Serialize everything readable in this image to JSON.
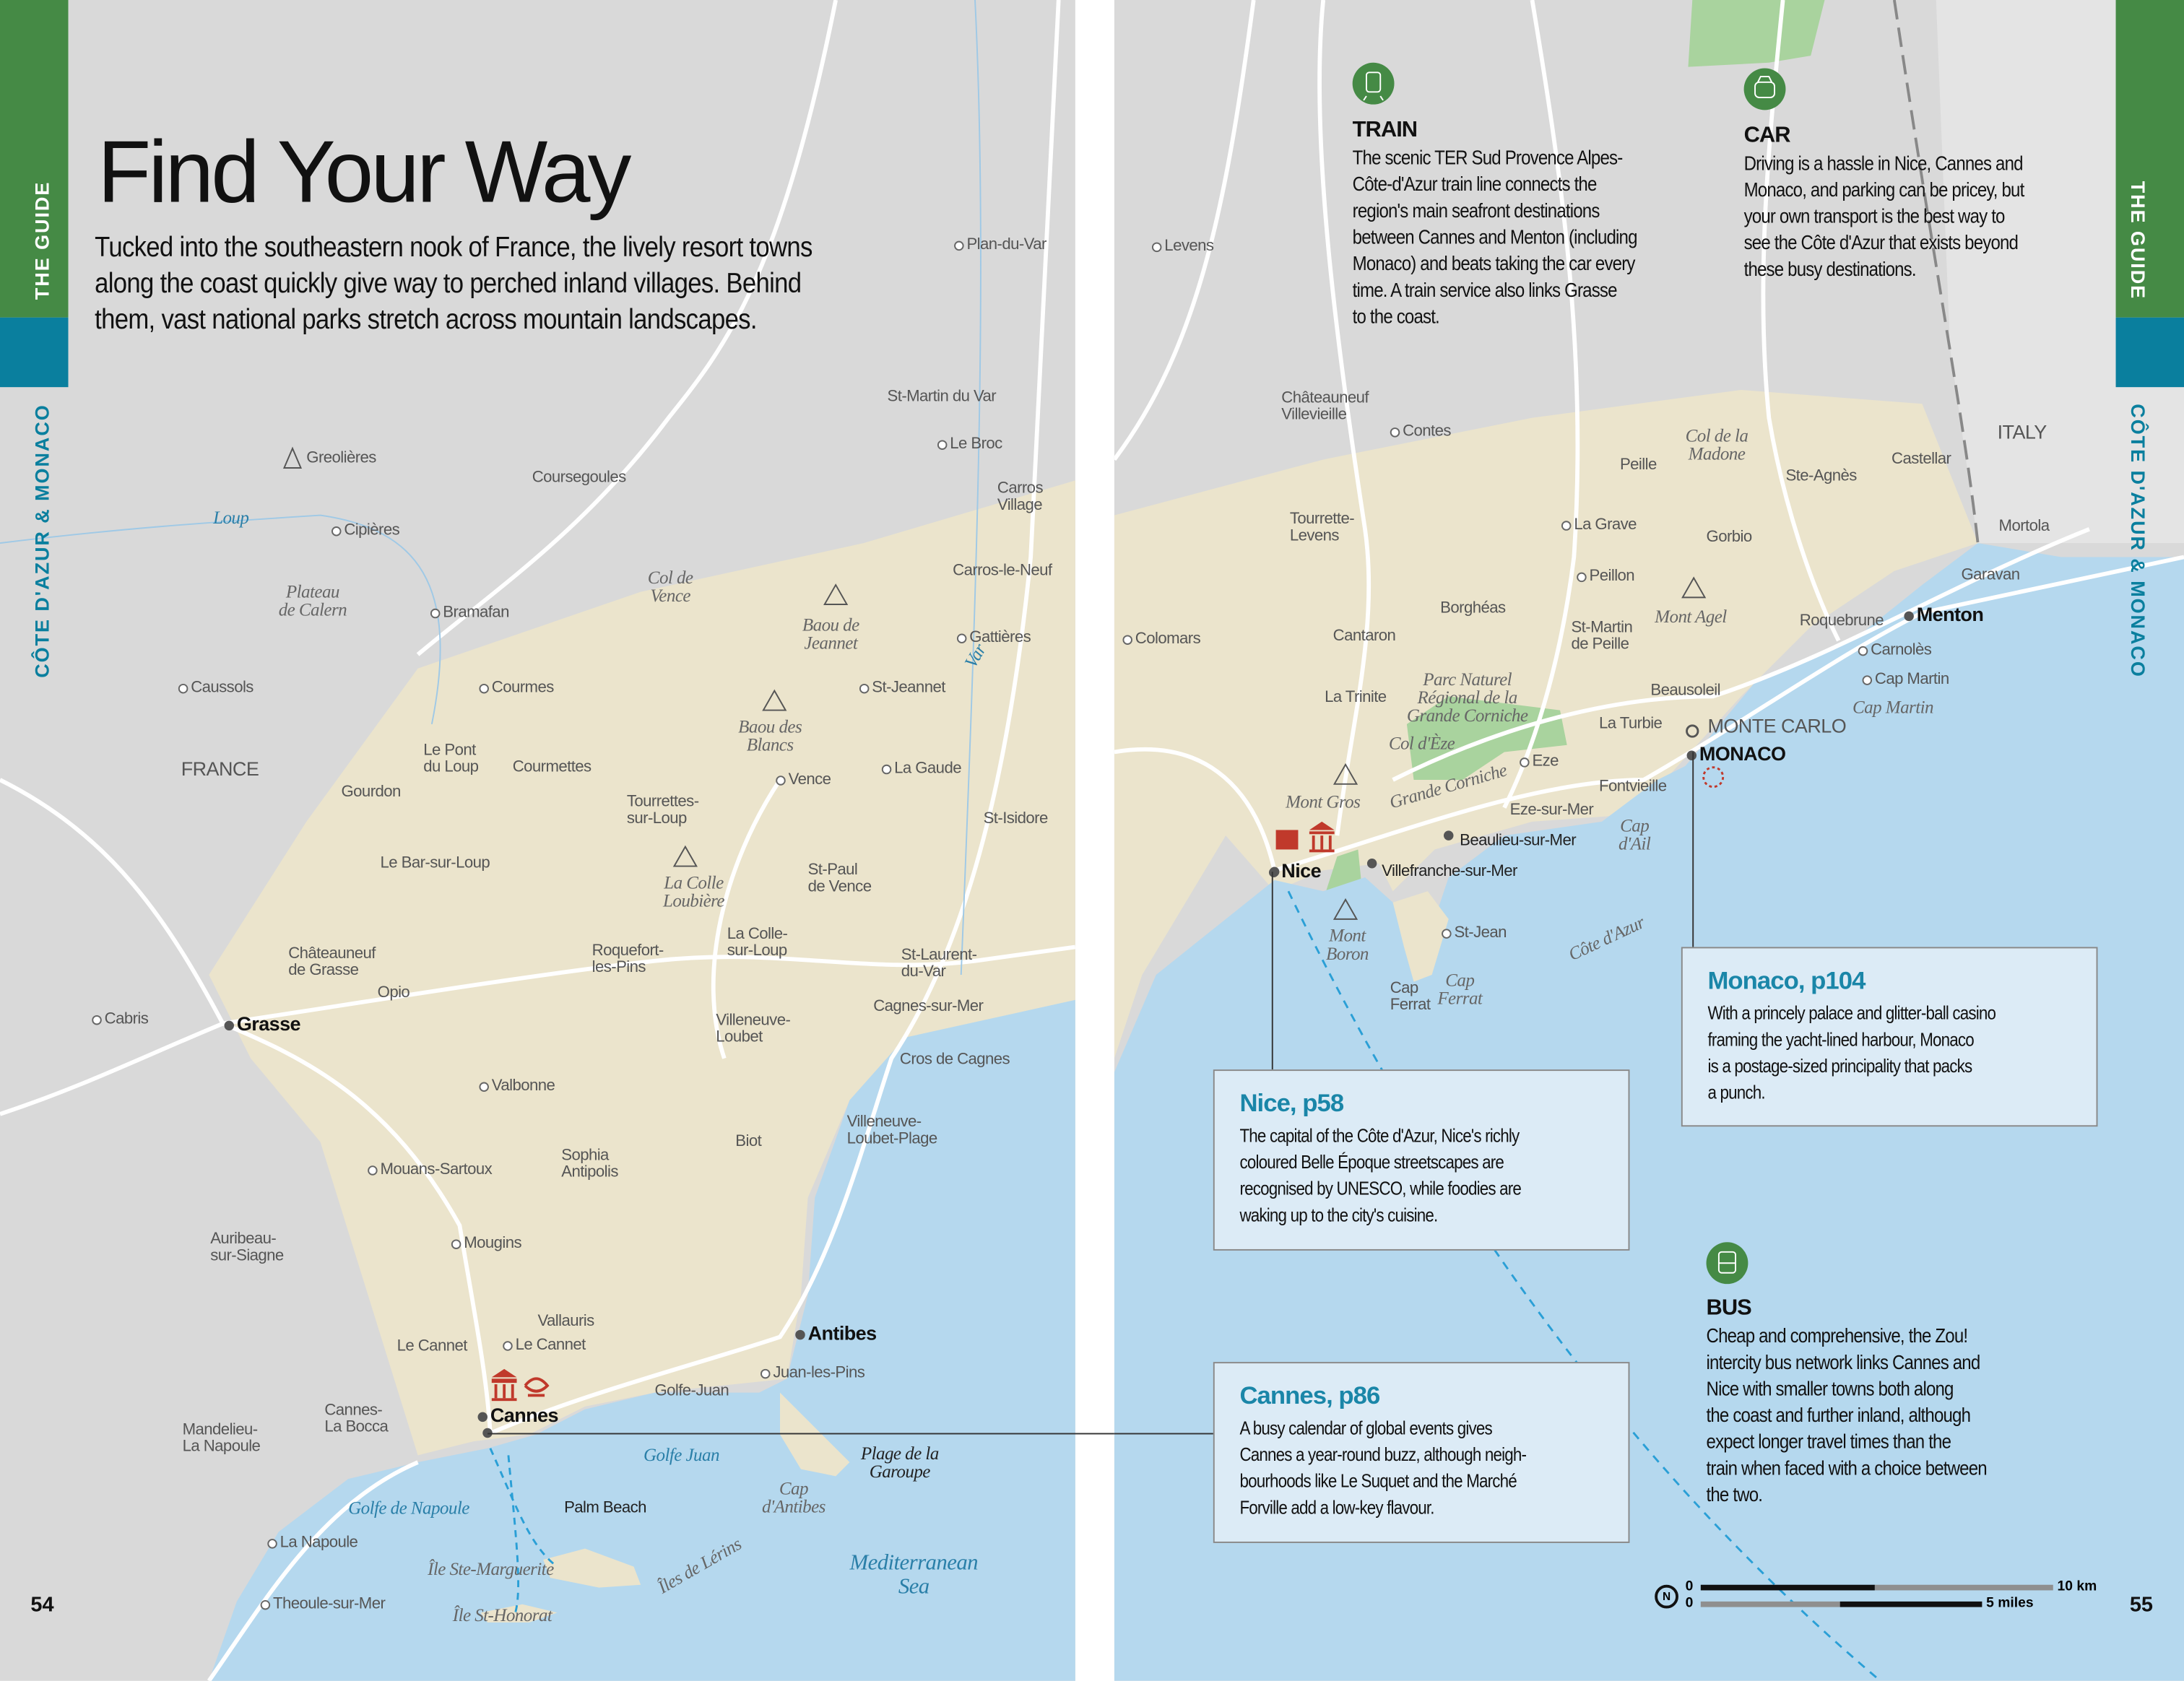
{
  "left": {
    "tab_label": "THE GUIDE",
    "section_label": "CÔTE D'AZUR & MONACO",
    "title": "Find Your Way",
    "intro_lines": [
      "Tucked into the southeastern nook of France, the lively resort towns",
      "along the coast quickly give way to perched inland villages. Behind",
      "them, vast national parks stretch across mountain landscapes."
    ],
    "page_number": "54",
    "labels": [
      "Plan-du-Var",
      "St-Martin du Var",
      "Le Broc",
      "Carros\nVillage",
      "Carros-le-Neuf",
      "Gattières",
      "St-Jeannet",
      "La Gaude",
      "St-Isidore",
      "Greolières",
      "Coursegoules",
      "Cipières",
      "Bramafan",
      "Caussols",
      "Courmes",
      "FRANCE",
      "Gourdon",
      "Le Pont\ndu Loup",
      "Courmettes",
      "Tourrettes-\nsur-Loup",
      "Le Bar-sur-Loup",
      "Vence",
      "St-Paul\nde Vence",
      "La Colle-\nsur-Loup",
      "Roquefort-\nles-Pins",
      "Châteauneuf\nde Grasse",
      "Opio",
      "Cabris",
      "Grasse",
      "St-Laurent-\ndu-Var",
      "Cagnes-sur-Mer",
      "Villeneuve-\nLoubet",
      "Cros de Cagnes",
      "Valbonne",
      "Villeneuve-\nLoubet-Plage",
      "Biot",
      "Sophia\nAntipolis",
      "Mouans-Sartoux",
      "Auribeau-\nsur-Siagne",
      "Mougins",
      "Vallauris",
      "Le Cannet",
      "Le Cannet",
      "Antibes",
      "Golfe-Juan",
      "Juan-les-Pins",
      "Cannes",
      "Cannes-\nLa Bocca",
      "Mandelieu-\nLa Napoule",
      "Plage de la\nGaroupe",
      "Palm Beach",
      "La Napoule",
      "Theoule-sur-Mer"
    ],
    "features": [
      "Loup",
      "Plateau\nde Calern",
      "Col de\nVence",
      "Baou de\nJeannet",
      "Baou des\nBlancs",
      "La Colle\nLoubière",
      "Var",
      "Golfe Juan",
      "Golfe de Napoule",
      "Cap\nd'Antibes",
      "Mediterranean\nSea",
      "Île Ste-Marguerite",
      "Île St-Honorat",
      "Îles de Lérins"
    ]
  },
  "right": {
    "tab_label": "THE GUIDE",
    "section_label": "CÔTE D'AZUR & MONACO",
    "page_number": "55",
    "train": {
      "heading": "TRAIN",
      "lines": [
        "The scenic TER Sud Provence Alpes-",
        "Côte-d'Azur train line connects the",
        "region's main seafront destinations",
        "between Cannes and Menton (including",
        "Monaco) and beats taking the car every",
        "time. A train service also links Grasse",
        "to the coast."
      ]
    },
    "car": {
      "heading": "CAR",
      "lines": [
        "Driving is a hassle in Nice, Cannes and",
        "Monaco, and parking can be pricey, but",
        "your own transport is the best way to",
        "see the Côte d'Azur that exists beyond",
        "these busy destinations."
      ]
    },
    "bus": {
      "heading": "BUS",
      "lines": [
        "Cheap and comprehensive, the Zou!",
        "intercity bus network links Cannes and",
        "Nice with smaller towns both along",
        "the coast and further inland, although",
        "expect longer travel times than the",
        "train when faced with a choice between",
        "the two."
      ]
    },
    "nice_box": {
      "title": "Nice, p58",
      "lines": [
        "The capital of the Côte d'Azur, Nice's richly",
        "coloured Belle Époque streetscapes are",
        "recognised by UNESCO, while foodies are",
        "waking up to the city's cuisine."
      ]
    },
    "cannes_box": {
      "title": "Cannes, p86",
      "lines": [
        "A busy calendar of global events gives",
        "Cannes a year-round buzz, although neigh-",
        "bourhoods like Le Suquet and the Marché",
        "Forville add a low-key flavour."
      ]
    },
    "monaco_box": {
      "title": "Monaco, p104",
      "lines": [
        "With a princely palace and glitter-ball casino",
        "framing the yacht-lined harbour, Monaco",
        "is a postage-sized principality that packs",
        "a punch."
      ]
    },
    "scale": {
      "zero": "0",
      "km": "10 km",
      "miles": "5 miles",
      "north": "N"
    },
    "labels": [
      "Levens",
      "Châteauneuf\nVillevieille",
      "Contes",
      "Tourrette-\nLevens",
      "Colomars",
      "Cantaron",
      "La Trinite",
      "Borghéas",
      "Nice",
      "Beaulieu-sur-Mer",
      "Villefranche-sur-Mer",
      "St-Jean",
      "Cap\nFerrat",
      "Eze",
      "Eze-sur-Mer",
      "Fontvieille",
      "La Turbie",
      "Beausoleil",
      "MONTE CARLO",
      "MONACO",
      "St-Martin\nde Peille",
      "Peillon",
      "La Grave",
      "Peille",
      "Ste-Agnès",
      "Castellar",
      "ITALY",
      "Gorbio",
      "Roquebrune",
      "Menton",
      "Garavan",
      "Mortola",
      "Carnolès",
      "Cap Martin"
    ],
    "features": [
      "Parc Naturel\nRégional de la\nGrande Corniche",
      "Col d'Èze",
      "Grande Corniche",
      "Mont Gros",
      "Mont\nBoron",
      "Cap\nFerrat",
      "Côte d'Azur",
      "Cap\nd'Ail",
      "Col de la\nMadone",
      "Mont Agel",
      "Cap Martin"
    ]
  },
  "colors": {
    "green_tab": "#458a45",
    "teal_tab": "#0a7f9e",
    "sea": "#b5d8ee",
    "land": "#d9d9d9",
    "region": "#ebe4cc",
    "park": "#a9d39e",
    "accent_red": "#c0392b"
  }
}
